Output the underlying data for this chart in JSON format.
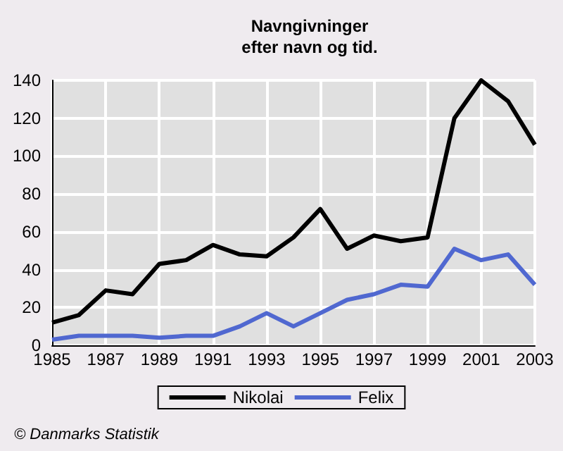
{
  "chart_data": {
    "type": "line",
    "title": "Navngivninger\nefter navn og tid.",
    "x": [
      1985,
      1986,
      1987,
      1988,
      1989,
      1990,
      1991,
      1992,
      1993,
      1994,
      1995,
      1996,
      1997,
      1998,
      1999,
      2000,
      2001,
      2002,
      2003
    ],
    "series": [
      {
        "name": "Nikolai",
        "color": "#000000",
        "values": [
          12,
          16,
          29,
          27,
          43,
          45,
          53,
          48,
          47,
          57,
          72,
          51,
          58,
          55,
          57,
          120,
          140,
          129,
          106
        ]
      },
      {
        "name": "Felix",
        "color": "#5068d0",
        "values": [
          3,
          5,
          5,
          5,
          4,
          5,
          5,
          10,
          17,
          10,
          17,
          24,
          27,
          32,
          31,
          51,
          45,
          48,
          32
        ]
      }
    ],
    "xlim": [
      1985,
      2003
    ],
    "xticks": [
      1985,
      1987,
      1989,
      1991,
      1993,
      1995,
      1997,
      1999,
      2001,
      2003
    ],
    "ylim": [
      0,
      140
    ],
    "yticks": [
      0,
      20,
      40,
      60,
      80,
      100,
      120,
      140
    ],
    "grid": true,
    "legend": "bottom",
    "marker": "none",
    "line_style": "solid",
    "annotations": [
      "© Danmarks Statistik"
    ]
  }
}
